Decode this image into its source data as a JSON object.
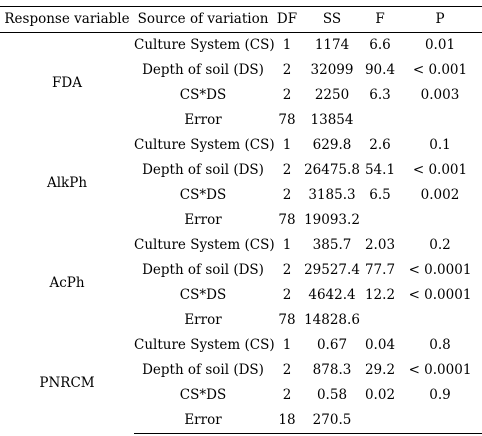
{
  "table": {
    "headers": {
      "response": "Response variable",
      "source": "Source of variation",
      "df": "DF",
      "ss": "SS",
      "f": "F",
      "p": "P"
    },
    "groups": [
      {
        "name": "FDA",
        "rows": [
          {
            "source": "Culture System (CS)",
            "df": "1",
            "ss": "1174",
            "f": "6.6",
            "p": "0.01"
          },
          {
            "source": "Depth of soil (DS)",
            "df": "2",
            "ss": "32099",
            "f": "90.4",
            "p": "< 0.001"
          },
          {
            "source": "CS*DS",
            "df": "2",
            "ss": "2250",
            "f": "6.3",
            "p": "0.003"
          },
          {
            "source": "Error",
            "df": "78",
            "ss": "13854",
            "f": "",
            "p": ""
          }
        ]
      },
      {
        "name": "AlkPh",
        "rows": [
          {
            "source": "Culture System (CS)",
            "df": "1",
            "ss": "629.8",
            "f": "2.6",
            "p": "0.1"
          },
          {
            "source": "Depth of soil (DS)",
            "df": "2",
            "ss": "26475.8",
            "f": "54.1",
            "p": "< 0.001"
          },
          {
            "source": "CS*DS",
            "df": "2",
            "ss": "3185.3",
            "f": "6.5",
            "p": "0.002"
          },
          {
            "source": "Error",
            "df": "78",
            "ss": "19093.2",
            "f": "",
            "p": ""
          }
        ]
      },
      {
        "name": "AcPh",
        "rows": [
          {
            "source": "Culture System (CS)",
            "df": "1",
            "ss": "385.7",
            "f": "2.03",
            "p": "0.2"
          },
          {
            "source": "Depth of soil (DS)",
            "df": "2",
            "ss": "29527.4",
            "f": "77.7",
            "p": "< 0.0001"
          },
          {
            "source": "CS*DS",
            "df": "2",
            "ss": "4642.4",
            "f": "12.2",
            "p": "< 0.0001"
          },
          {
            "source": "Error",
            "df": "78",
            "ss": "14828.6",
            "f": "",
            "p": ""
          }
        ]
      },
      {
        "name": "PNRCM",
        "rows": [
          {
            "source": "Culture System (CS)",
            "df": "1",
            "ss": "0.67",
            "f": "0.04",
            "p": "0.8"
          },
          {
            "source": "Depth of soil (DS)",
            "df": "2",
            "ss": "878.3",
            "f": "29.2",
            "p": "< 0.0001"
          },
          {
            "source": "CS*DS",
            "df": "2",
            "ss": "0.58",
            "f": "0.02",
            "p": "0.9"
          },
          {
            "source": "Error",
            "df": "18",
            "ss": "270.5",
            "f": "",
            "p": ""
          }
        ]
      }
    ]
  }
}
